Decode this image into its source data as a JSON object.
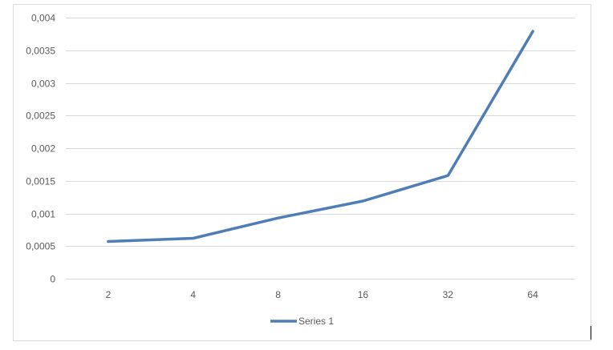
{
  "chart_data": {
    "type": "line",
    "title": "",
    "xlabel": "",
    "ylabel": "",
    "categories": [
      "2",
      "4",
      "8",
      "16",
      "32",
      "64"
    ],
    "series": [
      {
        "name": "Series 1",
        "values": [
          0.00057,
          0.00062,
          0.00093,
          0.00119,
          0.00158,
          0.00379
        ],
        "color": "#4F7DB8"
      }
    ],
    "ylim": [
      0,
      0.004
    ],
    "yticks": [
      "0",
      "0,0005",
      "0,001",
      "0,0015",
      "0,002",
      "0,0025",
      "0,003",
      "0,0035",
      "0,004"
    ],
    "grid": true,
    "legend_position": "bottom"
  }
}
